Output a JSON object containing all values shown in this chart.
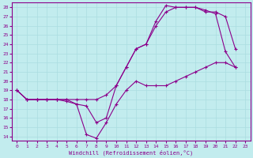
{
  "xlabel": "Windchill (Refroidissement éolien,°C)",
  "background_color": "#c2ecee",
  "grid_color": "#aadde0",
  "line_color": "#8b008b",
  "xlim": [
    -0.5,
    23.5
  ],
  "ylim": [
    13.5,
    28.5
  ],
  "yticks": [
    14,
    15,
    16,
    17,
    18,
    19,
    20,
    21,
    22,
    23,
    24,
    25,
    26,
    27,
    28
  ],
  "xticks": [
    0,
    1,
    2,
    3,
    4,
    5,
    6,
    7,
    8,
    9,
    10,
    11,
    12,
    13,
    14,
    15,
    16,
    17,
    18,
    19,
    20,
    21,
    22,
    23
  ],
  "lines": [
    {
      "x": [
        0,
        1,
        2,
        3,
        4,
        5,
        6,
        7,
        8,
        9,
        10,
        11,
        12,
        13,
        14,
        15,
        16,
        17,
        18,
        19,
        20,
        21,
        22,
        23
      ],
      "y": [
        19,
        18,
        18,
        18,
        18,
        18,
        17.5,
        14.2,
        13.8,
        15.5,
        17.5,
        19.0,
        20.0,
        19.5,
        19.5,
        19.5,
        20.0,
        20.5,
        21.0,
        21.5,
        22.0,
        22.0,
        21.5,
        null
      ]
    },
    {
      "x": [
        0,
        1,
        2,
        3,
        4,
        5,
        6,
        7,
        8,
        9,
        10,
        11,
        12,
        13,
        14,
        15,
        16,
        17,
        18,
        19,
        20,
        21,
        22,
        23
      ],
      "y": [
        19,
        18,
        18,
        18,
        18,
        18,
        18,
        18,
        18,
        18.5,
        19.5,
        21.5,
        23.5,
        24.0,
        26.0,
        27.5,
        28.0,
        28.0,
        28.0,
        27.5,
        27.5,
        27.0,
        23.5,
        null
      ]
    },
    {
      "x": [
        0,
        1,
        2,
        3,
        4,
        5,
        6,
        7,
        8,
        9,
        10,
        11,
        12,
        13,
        14,
        15,
        16,
        17,
        18,
        19,
        20,
        21,
        22,
        23
      ],
      "y": [
        19,
        18,
        18,
        18,
        18,
        17.8,
        17.5,
        17.3,
        15.5,
        16.0,
        19.5,
        21.5,
        23.5,
        24.0,
        26.5,
        28.2,
        28.0,
        28.0,
        28.0,
        27.7,
        27.3,
        23.2,
        21.5,
        null
      ]
    }
  ]
}
